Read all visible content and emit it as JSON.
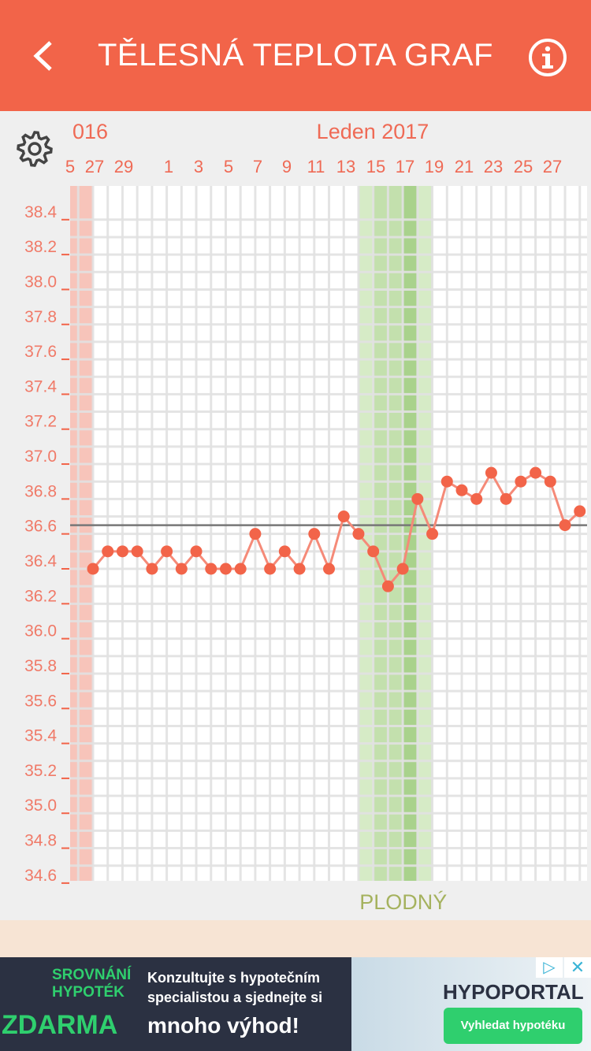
{
  "header": {
    "title": "TĚLESNÁ TEPLOTA GRAF",
    "back_icon": "chevron-left-icon",
    "info_icon": "info-circle-icon",
    "color": "#f26449"
  },
  "settings_icon": "gear-icon",
  "months": [
    "016",
    "Leden 2017"
  ],
  "day_labels": [
    "5",
    "27",
    "29",
    "1",
    "3",
    "5",
    "7",
    "9",
    "11",
    "13",
    "15",
    "17",
    "19",
    "21",
    "23",
    "25",
    "27"
  ],
  "fertile_label": "PLODNÝ",
  "chart_data": {
    "type": "line",
    "ylim": [
      34.6,
      38.4
    ],
    "yticks": [
      "38.4",
      "38.2",
      "38.0",
      "37.8",
      "37.6",
      "37.4",
      "37.2",
      "37.0",
      "36.8",
      "36.6",
      "36.4",
      "36.2",
      "36.0",
      "35.8",
      "35.6",
      "35.4",
      "35.2",
      "35.0",
      "34.8",
      "34.6"
    ],
    "x": [
      "2016-12-27",
      "2016-12-28",
      "2016-12-29",
      "2016-12-30",
      "2016-12-31",
      "2017-01-01",
      "2017-01-02",
      "2017-01-03",
      "2017-01-04",
      "2017-01-05",
      "2017-01-06",
      "2017-01-07",
      "2017-01-08",
      "2017-01-09",
      "2017-01-10",
      "2017-01-11",
      "2017-01-12",
      "2017-01-13",
      "2017-01-14",
      "2017-01-15",
      "2017-01-16",
      "2017-01-17",
      "2017-01-18",
      "2017-01-19",
      "2017-01-20",
      "2017-01-21",
      "2017-01-22",
      "2017-01-23",
      "2017-01-24",
      "2017-01-25",
      "2017-01-26",
      "2017-01-27",
      "2017-01-28",
      "2017-01-29"
    ],
    "values": [
      36.4,
      36.5,
      36.5,
      36.5,
      36.4,
      36.5,
      36.4,
      36.5,
      36.4,
      36.4,
      36.4,
      36.6,
      36.4,
      36.5,
      36.4,
      36.6,
      36.4,
      36.7,
      36.6,
      36.5,
      36.3,
      36.4,
      36.8,
      36.6,
      36.9,
      36.85,
      36.8,
      36.95,
      36.8,
      36.9,
      36.95,
      36.9,
      36.65,
      36.73
    ],
    "reference_line": 36.65,
    "grid": true,
    "series_color": "#f26449",
    "period_zone": {
      "from": "2016-12-25",
      "to": "2016-12-26",
      "color": "#f7c4ba"
    },
    "fertile_zone": {
      "from": "2017-01-14",
      "to": "2017-01-19",
      "color": "#c8e3b4",
      "peak": [
        "2017-01-17"
      ]
    }
  },
  "ad": {
    "line1": "SROVNÁNÍ",
    "line2": "HYPOTÉK",
    "big": "ZDARMA",
    "text1": "Konzultujte s hypotečním",
    "text2": "specialistou a sjednejte si",
    "text3": "mnoho výhod!",
    "brand": "HYPOPORTAL",
    "cta": "Vyhledat hypotéku",
    "close_icon": "close-icon",
    "adchoices_icon": "adchoices-icon"
  }
}
